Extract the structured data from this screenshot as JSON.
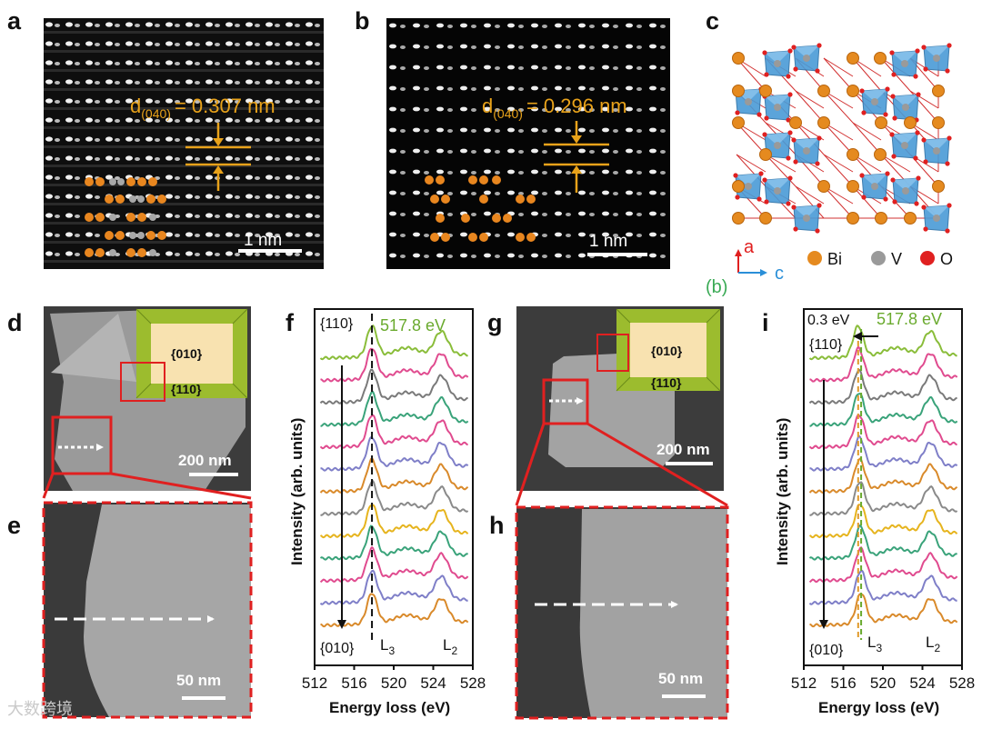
{
  "panels": {
    "a": {
      "label": "a",
      "d_label": "d",
      "d_sub": "(040)",
      "d_value": "=  0.307 nm",
      "scale": "1 nm"
    },
    "b": {
      "label": "b",
      "d_label": "d",
      "d_sub": "(040)",
      "d_value": "=  0.296 nm",
      "scale": "1 nm"
    },
    "c": {
      "label": "c",
      "axis_a": "a",
      "axis_c": "c",
      "axis_b": "(b)",
      "legend": [
        "Bi",
        "V",
        "O"
      ]
    },
    "d": {
      "label": "d",
      "facet_top": "{010}",
      "facet_side": "{110}",
      "scale": "200 nm"
    },
    "e": {
      "label": "e",
      "scale": "50 nm"
    },
    "f": {
      "label": "f",
      "top_label": "{110}",
      "bottom_label": "{010}",
      "energy": "517.8 eV",
      "ylabel": "Intensity (arb. units)",
      "xlabel": "Energy loss (eV)",
      "l3": "L",
      "l3_sub": "3",
      "l2": "L",
      "l2_sub": "2"
    },
    "g": {
      "label": "g",
      "facet_top": "{010}",
      "facet_side": "{110}",
      "scale": "200 nm"
    },
    "h": {
      "label": "h",
      "scale": "50 nm"
    },
    "i": {
      "label": "i",
      "top_label": "{110}",
      "bottom_label": "{010}",
      "energy": "517.8 eV",
      "shift": "0.3 eV",
      "ylabel": "Intensity (arb. units)",
      "xlabel": "Energy loss (eV)",
      "l3": "L",
      "l3_sub": "3",
      "l2": "L",
      "l2_sub": "2"
    }
  },
  "chart_data": [
    {
      "type": "line",
      "panel": "f",
      "title": "",
      "xlabel": "Energy loss (eV)",
      "ylabel": "Intensity (arb. units)",
      "xlim": [
        512,
        528
      ],
      "xticks": [
        "512",
        "516",
        "520",
        "524",
        "528"
      ],
      "num_spectra": 13,
      "series_colors": [
        "#d98a2b",
        "#7f7fc8",
        "#e04b8f",
        "#3aa37a",
        "#e6b41e",
        "#8a8a8a",
        "#d98a2b",
        "#7f7fc8",
        "#e04b8f",
        "#3aa37a",
        "#7a7a7a",
        "#e04b8f",
        "#8abd3a"
      ],
      "l3_peak_ev": 517.8,
      "l2_peak_ev": 524.8,
      "shift_ev": 0.0
    },
    {
      "type": "line",
      "panel": "i",
      "title": "",
      "xlabel": "Energy loss (eV)",
      "ylabel": "Intensity (arb. units)",
      "xlim": [
        512,
        528
      ],
      "xticks": [
        "512",
        "516",
        "520",
        "524",
        "528"
      ],
      "num_spectra": 13,
      "series_colors": [
        "#d98a2b",
        "#7f7fc8",
        "#e04b8f",
        "#3aa37a",
        "#e6b41e",
        "#8a8a8a",
        "#d98a2b",
        "#7f7fc8",
        "#e04b8f",
        "#3aa37a",
        "#7a7a7a",
        "#e04b8f",
        "#8abd3a"
      ],
      "l3_peak_ev": 517.8,
      "l2_peak_ev": 524.8,
      "shift_ev": 0.3
    }
  ],
  "colors": {
    "orange": "#e8a21a",
    "green_text": "#6aaa2e",
    "red": "#e02020",
    "bi": "#e58a1f",
    "v": "#9a9a9a",
    "o": "#e02020",
    "poly": "#4a9bd6"
  },
  "watermark": "大数跨境"
}
